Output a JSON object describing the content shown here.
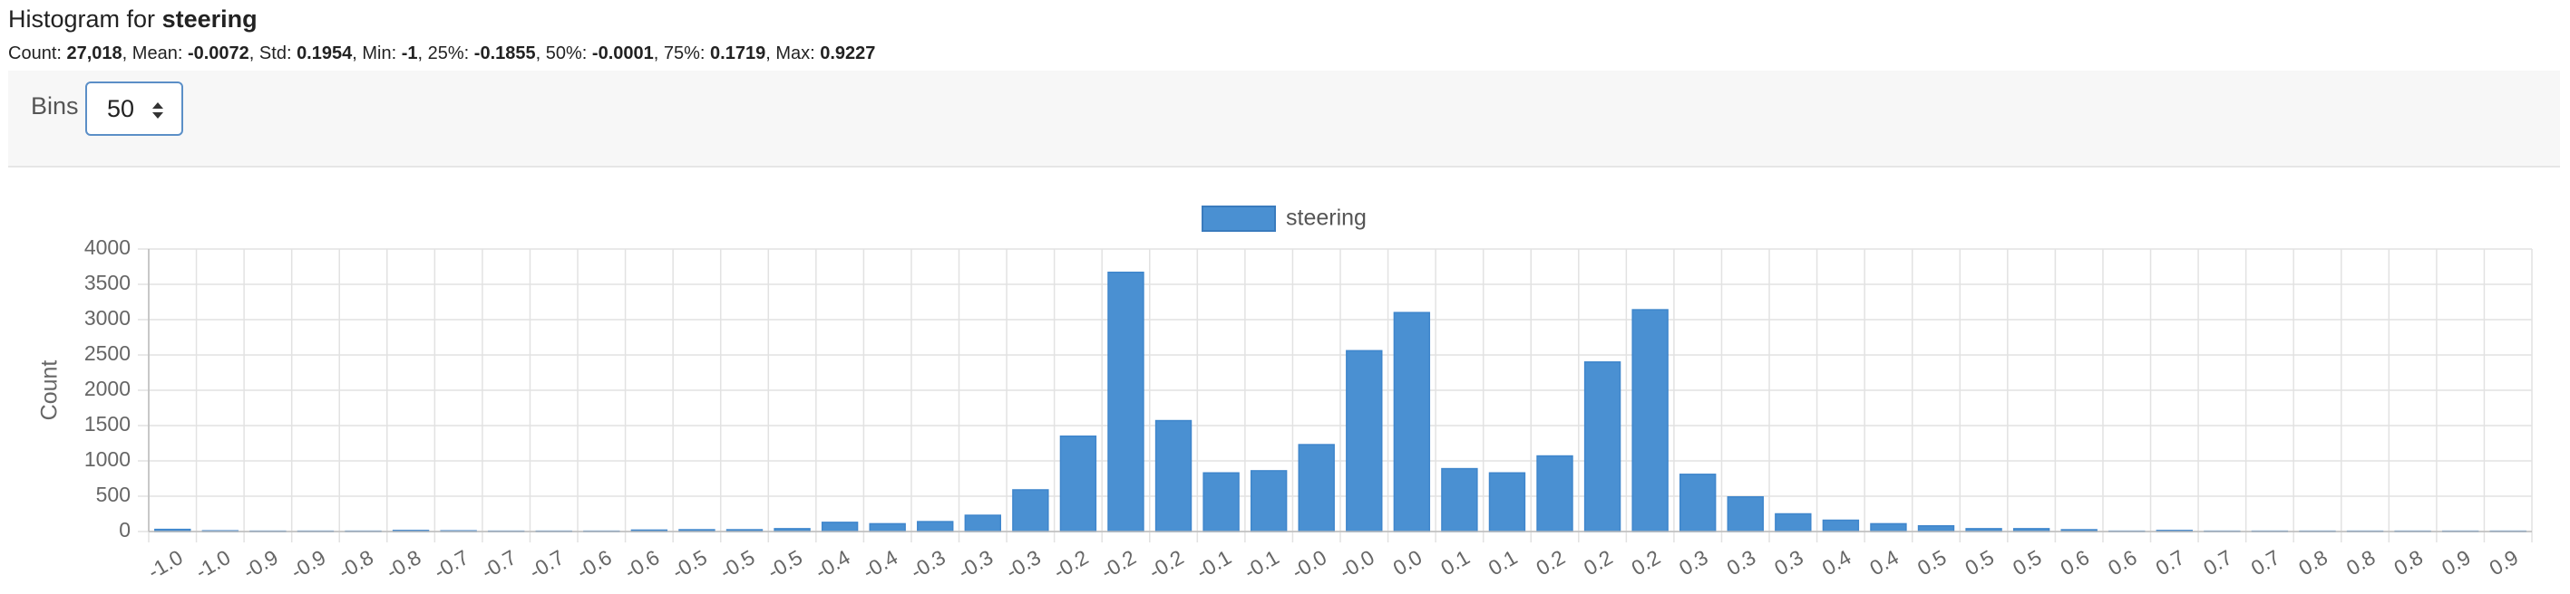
{
  "header": {
    "title_prefix": "Histogram for",
    "title_column": "steering"
  },
  "stats": {
    "separator": ", ",
    "items": [
      {
        "label": "Count:",
        "value": "27,018"
      },
      {
        "label": "Mean:",
        "value": "-0.0072"
      },
      {
        "label": "Std:",
        "value": "0.1954"
      },
      {
        "label": "Min:",
        "value": "-1"
      },
      {
        "label": "25%:",
        "value": "-0.1855"
      },
      {
        "label": "50%:",
        "value": "-0.0001"
      },
      {
        "label": "75%:",
        "value": "0.1719"
      },
      {
        "label": "Max:",
        "value": "0.9227"
      }
    ]
  },
  "controls": {
    "bins_label": "Bins",
    "bins_value": "50"
  },
  "chart_data": {
    "type": "bar",
    "categories": [
      "-1.0",
      "-1.0",
      "-0.9",
      "-0.9",
      "-0.8",
      "-0.8",
      "-0.7",
      "-0.7",
      "-0.7",
      "-0.6",
      "-0.6",
      "-0.5",
      "-0.5",
      "-0.5",
      "-0.4",
      "-0.4",
      "-0.3",
      "-0.3",
      "-0.3",
      "-0.2",
      "-0.2",
      "-0.2",
      "-0.1",
      "-0.1",
      "-0.0",
      "-0.0",
      "0.0",
      "0.1",
      "0.1",
      "0.2",
      "0.2",
      "0.2",
      "0.3",
      "0.3",
      "0.3",
      "0.4",
      "0.4",
      "0.5",
      "0.5",
      "0.5",
      "0.6",
      "0.6",
      "0.7",
      "0.7",
      "0.7",
      "0.8",
      "0.8",
      "0.8",
      "0.9",
      "0.9"
    ],
    "series": [
      {
        "name": "steering",
        "color": "#4a90d2",
        "values": [
          30,
          10,
          5,
          5,
          5,
          15,
          10,
          5,
          5,
          5,
          20,
          25,
          25,
          40,
          130,
          110,
          140,
          230,
          590,
          1350,
          3670,
          1570,
          830,
          860,
          1230,
          2560,
          3100,
          890,
          830,
          1070,
          2400,
          3140,
          810,
          490,
          250,
          160,
          110,
          80,
          40,
          40,
          25,
          5,
          15,
          5,
          5,
          5,
          5,
          5,
          5,
          5
        ]
      }
    ],
    "ylabel": "Count",
    "ylim": [
      0,
      4000
    ],
    "yticks": [
      0,
      500,
      1000,
      1500,
      2000,
      2500,
      3000,
      3500,
      4000
    ],
    "grid": true,
    "legend": "top"
  }
}
